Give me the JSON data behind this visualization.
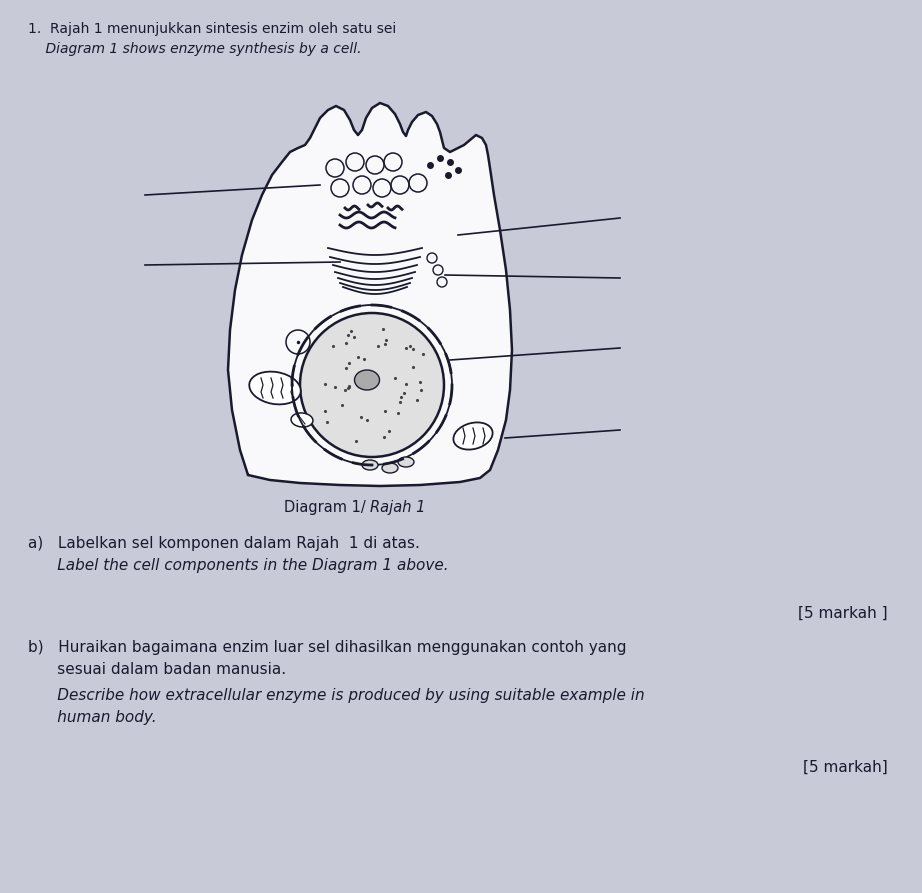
{
  "background_color": "#c8cad8",
  "title_line1": "1.  Rajah 1 menunjukkan sintesis enzim oleh satu sei",
  "title_line2": "    Diagram 1 shows enzyme synthesis by a cell.",
  "caption": "Diagram 1/ Rajah 1",
  "question_a_line1": "a)   Labelkan sel komponen dalam Rajah  1 di atas.",
  "question_a_line2": "      Label the cell components in the Diagram 1 above.",
  "marks_a": "[5 markah ]",
  "question_b_line1": "b)   Huraikan bagaimana enzim luar sel dihasilkan menggunakan contoh yang",
  "question_b_line2": "      sesuai dalam badan manusia.",
  "question_b_line3": "      Describe how extracellular enzyme is produced by using suitable example in",
  "question_b_line4": "      human body.",
  "marks_b": "[5 markah]",
  "ink_color": "#1a1a2e",
  "line_color": "#1a1a2e"
}
